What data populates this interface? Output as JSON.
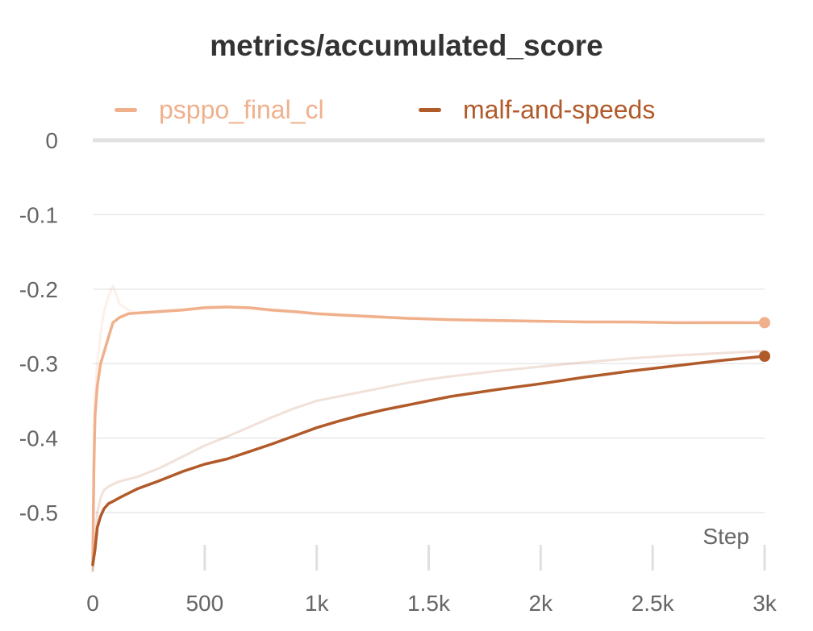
{
  "chart_data": {
    "type": "line",
    "title": "metrics/accumulated_score",
    "xlabel": "Step",
    "ylabel": "",
    "xlim": [
      0,
      3000
    ],
    "ylim": [
      -0.58,
      0
    ],
    "grid": true,
    "legend_position": "top",
    "x_ticks": [
      0,
      500,
      1000,
      1500,
      2000,
      2500,
      3000
    ],
    "x_tick_labels": [
      "0",
      "500",
      "1k",
      "1.5k",
      "2k",
      "2.5k",
      "3k"
    ],
    "y_ticks": [
      0,
      -0.1,
      -0.2,
      -0.3,
      -0.4,
      -0.5
    ],
    "y_tick_labels": [
      "0",
      "-0.1",
      "-0.2",
      "-0.3",
      "-0.4",
      "-0.5"
    ],
    "series": [
      {
        "name": "psppo_final_cl",
        "color": "#f0b08c",
        "x": [
          0,
          5,
          10,
          20,
          35,
          50,
          70,
          90,
          120,
          160,
          200,
          300,
          400,
          500,
          600,
          700,
          800,
          900,
          1000,
          1200,
          1400,
          1600,
          1800,
          2000,
          2200,
          2400,
          2600,
          2800,
          3000
        ],
        "y": [
          -0.57,
          -0.44,
          -0.37,
          -0.33,
          -0.3,
          -0.285,
          -0.265,
          -0.245,
          -0.238,
          -0.233,
          -0.232,
          -0.23,
          -0.228,
          -0.225,
          -0.224,
          -0.225,
          -0.228,
          -0.23,
          -0.233,
          -0.236,
          -0.239,
          -0.241,
          -0.242,
          -0.243,
          -0.244,
          -0.244,
          -0.245,
          -0.245,
          -0.245
        ],
        "raw_y": [
          -0.58,
          -0.42,
          -0.34,
          -0.3,
          -0.26,
          -0.23,
          -0.21,
          -0.195,
          -0.22,
          -0.228,
          -0.232,
          -0.229,
          -0.227,
          -0.224,
          -0.223,
          -0.226,
          -0.229,
          -0.231,
          -0.234,
          -0.237,
          -0.24,
          -0.241,
          -0.243,
          -0.243,
          -0.244,
          -0.245,
          -0.245,
          -0.244,
          -0.245
        ]
      },
      {
        "name": "malf-and-speeds",
        "color": "#b15a2a",
        "x": [
          0,
          10,
          20,
          35,
          50,
          70,
          90,
          120,
          160,
          200,
          300,
          400,
          500,
          600,
          700,
          800,
          900,
          1000,
          1100,
          1200,
          1300,
          1400,
          1500,
          1600,
          1800,
          2000,
          2200,
          2400,
          2600,
          2800,
          3000
        ],
        "y": [
          -0.57,
          -0.55,
          -0.52,
          -0.505,
          -0.495,
          -0.488,
          -0.485,
          -0.48,
          -0.474,
          -0.468,
          -0.457,
          -0.445,
          -0.435,
          -0.428,
          -0.418,
          -0.408,
          -0.397,
          -0.386,
          -0.377,
          -0.369,
          -0.362,
          -0.356,
          -0.35,
          -0.344,
          -0.335,
          -0.327,
          -0.318,
          -0.31,
          -0.303,
          -0.296,
          -0.29
        ],
        "raw_y": [
          -0.58,
          -0.54,
          -0.5,
          -0.48,
          -0.47,
          -0.465,
          -0.462,
          -0.458,
          -0.455,
          -0.452,
          -0.44,
          -0.425,
          -0.41,
          -0.398,
          -0.385,
          -0.372,
          -0.36,
          -0.35,
          -0.344,
          -0.338,
          -0.332,
          -0.326,
          -0.321,
          -0.317,
          -0.31,
          -0.304,
          -0.298,
          -0.293,
          -0.289,
          -0.286,
          -0.283
        ]
      }
    ]
  }
}
